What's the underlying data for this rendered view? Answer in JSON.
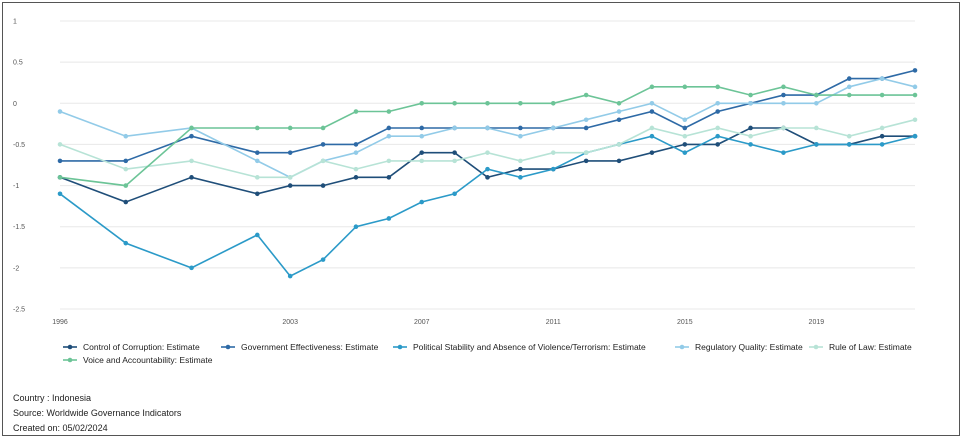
{
  "chart_data": {
    "type": "line",
    "title": "",
    "xlabel": "",
    "ylabel": "",
    "ylim": [
      -2.5,
      1
    ],
    "y_ticks": [
      "1",
      "0.5",
      "0",
      "-0.5",
      "-1",
      "-1.5",
      "-2",
      "-2.5"
    ],
    "x_ticks": [
      "1996",
      "2003",
      "2007",
      "2011",
      "2015",
      "2019"
    ],
    "x": [
      1996,
      1998,
      2000,
      2002,
      2003,
      2004,
      2005,
      2006,
      2007,
      2008,
      2009,
      2010,
      2011,
      2012,
      2013,
      2014,
      2015,
      2016,
      2017,
      2018,
      2019,
      2020,
      2021,
      2022
    ],
    "grid": true,
    "legend_position": "bottom",
    "series": [
      {
        "name": "Control of Corruption: Estimate",
        "color": "#1f4e79",
        "values": [
          -0.9,
          -1.2,
          -0.9,
          -1.1,
          -1.0,
          -1.0,
          -0.9,
          -0.9,
          -0.6,
          -0.6,
          -0.9,
          -0.8,
          -0.8,
          -0.7,
          -0.7,
          -0.6,
          -0.5,
          -0.5,
          -0.3,
          -0.3,
          -0.5,
          -0.5,
          -0.4,
          -0.4
        ]
      },
      {
        "name": "Government Effectiveness: Estimate",
        "color": "#2e6aa6",
        "values": [
          -0.7,
          -0.7,
          -0.4,
          -0.6,
          -0.6,
          -0.5,
          -0.5,
          -0.3,
          -0.3,
          -0.3,
          -0.3,
          -0.3,
          -0.3,
          -0.3,
          -0.2,
          -0.1,
          -0.3,
          -0.1,
          0.0,
          0.1,
          0.1,
          0.3,
          0.3,
          0.4
        ]
      },
      {
        "name": "Political Stability and Absence of Violence/Terrorism: Estimate",
        "color": "#2b9ac8",
        "values": [
          -1.1,
          -1.7,
          -2.0,
          -1.6,
          -2.1,
          -1.9,
          -1.5,
          -1.4,
          -1.2,
          -1.1,
          -0.8,
          -0.9,
          -0.8,
          -0.6,
          -0.5,
          -0.4,
          -0.6,
          -0.4,
          -0.5,
          -0.6,
          -0.5,
          -0.5,
          -0.5,
          -0.4
        ]
      },
      {
        "name": "Regulatory Quality: Estimate",
        "color": "#92cbe8",
        "values": [
          -0.1,
          -0.4,
          -0.3,
          -0.7,
          -0.9,
          -0.7,
          -0.6,
          -0.4,
          -0.4,
          -0.3,
          -0.3,
          -0.4,
          -0.3,
          -0.2,
          -0.1,
          0.0,
          -0.2,
          0.0,
          0.0,
          0.0,
          0.0,
          0.2,
          0.3,
          0.2
        ]
      },
      {
        "name": "Rule of Law: Estimate",
        "color": "#b7e3d6",
        "values": [
          -0.5,
          -0.8,
          -0.7,
          -0.9,
          -0.9,
          -0.7,
          -0.8,
          -0.7,
          -0.7,
          -0.7,
          -0.6,
          -0.7,
          -0.6,
          -0.6,
          -0.5,
          -0.3,
          -0.4,
          -0.3,
          -0.4,
          -0.3,
          -0.3,
          -0.4,
          -0.3,
          -0.2
        ]
      },
      {
        "name": "Voice and Accountability: Estimate",
        "color": "#6cc497",
        "values": [
          -0.9,
          -1.0,
          -0.3,
          -0.3,
          -0.3,
          -0.3,
          -0.1,
          -0.1,
          0.0,
          0.0,
          0.0,
          0.0,
          0.0,
          0.1,
          0.0,
          0.2,
          0.2,
          0.2,
          0.1,
          0.2,
          0.1,
          0.1,
          0.1,
          0.1
        ]
      }
    ]
  },
  "footer": {
    "country": "Country : Indonesia",
    "source": "Source: Worldwide Governance Indicators",
    "created": "Created on: 05/02/2024"
  }
}
